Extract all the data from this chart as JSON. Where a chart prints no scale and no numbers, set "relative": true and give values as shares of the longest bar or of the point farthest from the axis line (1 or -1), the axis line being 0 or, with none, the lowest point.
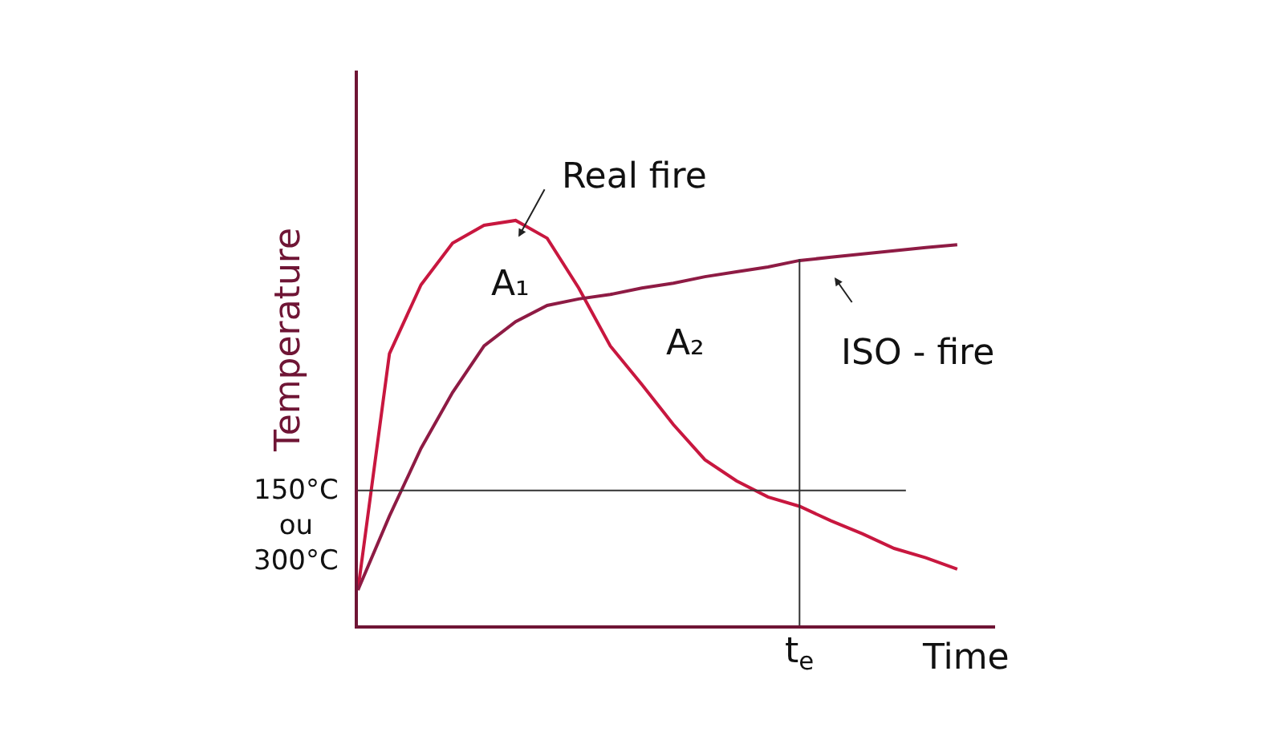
{
  "chart_data": {
    "type": "line",
    "relative": true,
    "xlabel": "Time",
    "ylabel": "Temperature",
    "categories": [
      null,
      null,
      null,
      null,
      null,
      null,
      null,
      null,
      null,
      null,
      null,
      null,
      null,
      null,
      null,
      null,
      null,
      null,
      null,
      null
    ],
    "series": [
      {
        "color": "#c8173f",
        "values": [
          0.087,
          0.671,
          0.841,
          0.944,
          0.988,
          1.0,
          0.956,
          0.833,
          0.69,
          0.595,
          0.496,
          0.409,
          0.357,
          0.317,
          0.294,
          0.258,
          0.226,
          0.19,
          0.167,
          0.139
        ]
      },
      {
        "color": "#8e1b44",
        "values": [
          0.087,
          0.27,
          0.437,
          0.575,
          0.69,
          0.75,
          0.79,
          0.806,
          0.817,
          0.833,
          0.845,
          0.861,
          0.873,
          0.885,
          0.901,
          0.909,
          0.917,
          0.925,
          0.933,
          0.94
        ]
      }
    ],
    "ref_lines": [
      {
        "axis": "y",
        "value": 0.333,
        "label": "150°C\nou\n300°C",
        "color": "#333333"
      },
      {
        "axis": "x",
        "label": "t$_{e}$",
        "color": "#333333"
      }
    ],
    "annotations": [
      "Real fire",
      "ISO - fire",
      "A₁",
      "A₂"
    ]
  }
}
